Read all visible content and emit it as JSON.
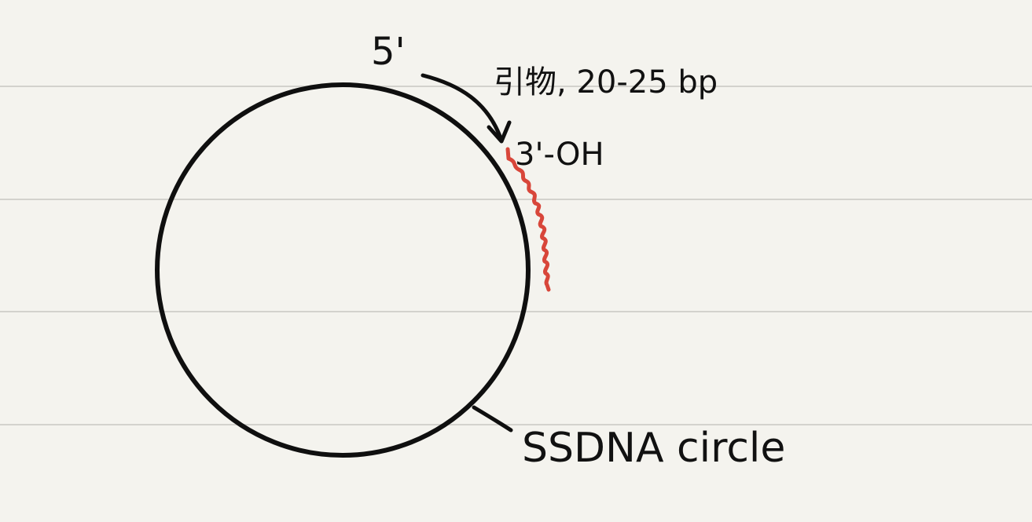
{
  "colors": {
    "paper": "#f4f3ee",
    "ruled_line": "#d3d2cd",
    "ink": "#0f0f0f",
    "primer": "#d8463a"
  },
  "labels": {
    "five_prime": "5'",
    "primer": "引物, 20-25 bp",
    "three_prime_oh": "3'-OH",
    "circle": "SSDNA circle"
  }
}
